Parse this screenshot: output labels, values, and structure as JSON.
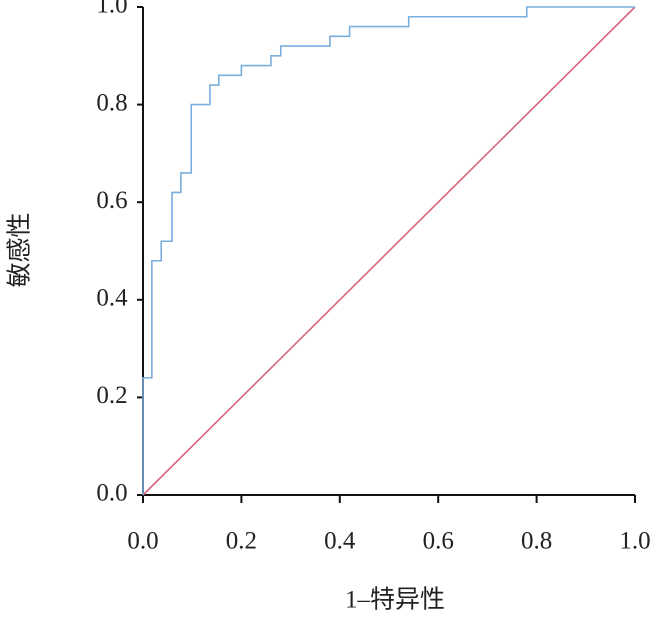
{
  "chart_data": {
    "type": "line",
    "xlabel": "1–特异性",
    "ylabel": "敏感性",
    "xlim": [
      0,
      1
    ],
    "ylim": [
      0,
      1
    ],
    "xticks": [
      {
        "value": 0,
        "label": "0.0"
      },
      0.2,
      0.4,
      0.6,
      0.8,
      {
        "value": 1,
        "label": "1.0"
      }
    ],
    "yticks": [
      {
        "value": 0,
        "label": "0.0"
      },
      0.2,
      0.4,
      0.6,
      0.8,
      {
        "value": 1,
        "label": "1.0"
      }
    ],
    "series": [
      {
        "color": "#7aaedc",
        "x": [
          0,
          0,
          0.018,
          0.018,
          0.037,
          0.037,
          0.059,
          0.059,
          0.077,
          0.077,
          0.098,
          0.098,
          0.136,
          0.136,
          0.154,
          0.154,
          0.2,
          0.2,
          0.26,
          0.26,
          0.28,
          0.28,
          0.38,
          0.38,
          0.42,
          0.42,
          0.54,
          0.54,
          0.78,
          0.78,
          1.0
        ],
        "values": [
          0,
          0.24,
          0.24,
          0.48,
          0.48,
          0.52,
          0.52,
          0.62,
          0.62,
          0.66,
          0.66,
          0.8,
          0.8,
          0.84,
          0.84,
          0.86,
          0.86,
          0.88,
          0.88,
          0.9,
          0.9,
          0.92,
          0.92,
          0.94,
          0.94,
          0.96,
          0.96,
          0.98,
          0.98,
          1.0,
          1.0
        ]
      },
      {
        "color": "#d6667f",
        "x": [
          0,
          1
        ],
        "values": [
          0,
          1
        ]
      }
    ]
  }
}
